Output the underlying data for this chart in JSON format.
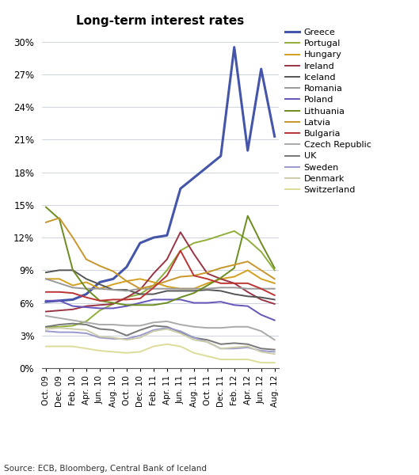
{
  "title": "Long-term interest rates",
  "source": "Source: ECB, Bloomberg, Central Bank of Iceland",
  "x_labels": [
    "Oct. 09",
    "Dec. 09",
    "Feb. 10",
    "Apr. 10",
    "Jun. 10",
    "Aug. 10",
    "Oct. 10",
    "Dec. 10",
    "Feb. 11",
    "Apr. 11",
    "Jun. 11",
    "Aug. 11",
    "Oct. 11",
    "Dec. 11",
    "Feb. 12",
    "Apr. 12",
    "Jun. 12",
    "Aug. 12"
  ],
  "ylim": [
    0,
    0.31
  ],
  "yticks": [
    0.0,
    0.03,
    0.06,
    0.09,
    0.12,
    0.15,
    0.18,
    0.21,
    0.24,
    0.27,
    0.3
  ],
  "series": {
    "Greece": {
      "color": "#4455aa",
      "lw": 2.2,
      "values": [
        0.061,
        0.062,
        0.063,
        0.068,
        0.079,
        0.082,
        0.093,
        0.115,
        0.12,
        0.122,
        0.165,
        0.175,
        0.185,
        0.195,
        0.295,
        0.2,
        0.275,
        0.213
      ]
    },
    "Portugal": {
      "color": "#8fae3a",
      "lw": 1.4,
      "values": [
        0.038,
        0.038,
        0.039,
        0.043,
        0.053,
        0.059,
        0.065,
        0.068,
        0.076,
        0.09,
        0.108,
        0.115,
        0.118,
        0.122,
        0.126,
        0.118,
        0.107,
        0.09
      ]
    },
    "Hungary": {
      "color": "#d4a020",
      "lw": 1.4,
      "values": [
        0.082,
        0.082,
        0.076,
        0.079,
        0.073,
        0.077,
        0.08,
        0.082,
        0.079,
        0.075,
        0.073,
        0.073,
        0.078,
        0.082,
        0.084,
        0.09,
        0.082,
        0.078
      ]
    },
    "Ireland": {
      "color": "#993344",
      "lw": 1.4,
      "values": [
        0.052,
        0.053,
        0.054,
        0.057,
        0.058,
        0.059,
        0.065,
        0.072,
        0.087,
        0.1,
        0.125,
        0.105,
        0.087,
        0.082,
        0.078,
        0.07,
        0.063,
        0.059
      ]
    },
    "Iceland": {
      "color": "#555555",
      "lw": 1.4,
      "values": [
        0.088,
        0.09,
        0.09,
        0.082,
        0.077,
        0.072,
        0.072,
        0.068,
        0.068,
        0.071,
        0.071,
        0.071,
        0.072,
        0.071,
        0.068,
        0.066,
        0.065,
        0.063
      ]
    },
    "Romania": {
      "color": "#999999",
      "lw": 1.4,
      "values": [
        0.082,
        0.078,
        0.074,
        0.073,
        0.073,
        0.072,
        0.071,
        0.073,
        0.073,
        0.073,
        0.073,
        0.073,
        0.073,
        0.074,
        0.074,
        0.073,
        0.073,
        0.073
      ]
    },
    "Poland": {
      "color": "#6655bb",
      "lw": 1.4,
      "values": [
        0.062,
        0.062,
        0.057,
        0.056,
        0.055,
        0.055,
        0.057,
        0.06,
        0.063,
        0.063,
        0.063,
        0.06,
        0.06,
        0.061,
        0.058,
        0.057,
        0.049,
        0.044
      ]
    },
    "Lithuania": {
      "color": "#6b8c1e",
      "lw": 1.4,
      "values": [
        0.148,
        0.137,
        0.09,
        0.073,
        0.062,
        0.06,
        0.058,
        0.058,
        0.058,
        0.06,
        0.065,
        0.069,
        0.076,
        0.083,
        0.092,
        0.14,
        0.115,
        0.092
      ]
    },
    "Latvia": {
      "color": "#c8962a",
      "lw": 1.4,
      "values": [
        0.134,
        0.138,
        0.12,
        0.1,
        0.094,
        0.089,
        0.08,
        0.073,
        0.076,
        0.08,
        0.084,
        0.085,
        0.088,
        0.092,
        0.095,
        0.098,
        0.09,
        0.082
      ]
    },
    "Bulgaria": {
      "color": "#bb3333",
      "lw": 1.4,
      "values": [
        0.07,
        0.07,
        0.069,
        0.065,
        0.062,
        0.063,
        0.063,
        0.064,
        0.074,
        0.085,
        0.108,
        0.085,
        0.082,
        0.078,
        0.078,
        0.078,
        0.073,
        0.067
      ]
    },
    "Czech Republic": {
      "color": "#aaaaaa",
      "lw": 1.4,
      "values": [
        0.048,
        0.046,
        0.044,
        0.042,
        0.04,
        0.04,
        0.039,
        0.039,
        0.042,
        0.043,
        0.04,
        0.038,
        0.037,
        0.037,
        0.038,
        0.038,
        0.034,
        0.026
      ]
    },
    "UK": {
      "color": "#777777",
      "lw": 1.4,
      "values": [
        0.038,
        0.04,
        0.041,
        0.04,
        0.036,
        0.035,
        0.03,
        0.035,
        0.039,
        0.038,
        0.033,
        0.028,
        0.026,
        0.022,
        0.023,
        0.022,
        0.018,
        0.017
      ]
    },
    "Sweden": {
      "color": "#9999cc",
      "lw": 1.4,
      "values": [
        0.034,
        0.033,
        0.033,
        0.032,
        0.028,
        0.027,
        0.027,
        0.03,
        0.035,
        0.037,
        0.034,
        0.028,
        0.024,
        0.018,
        0.018,
        0.019,
        0.016,
        0.015
      ]
    },
    "Denmark": {
      "color": "#ccccaa",
      "lw": 1.4,
      "values": [
        0.036,
        0.037,
        0.036,
        0.035,
        0.029,
        0.028,
        0.026,
        0.028,
        0.034,
        0.036,
        0.032,
        0.026,
        0.024,
        0.018,
        0.019,
        0.02,
        0.015,
        0.013
      ]
    },
    "Switzerland": {
      "color": "#dddd99",
      "lw": 1.4,
      "values": [
        0.02,
        0.02,
        0.02,
        0.018,
        0.016,
        0.015,
        0.014,
        0.015,
        0.02,
        0.022,
        0.02,
        0.014,
        0.011,
        0.008,
        0.008,
        0.008,
        0.005,
        0.005
      ]
    }
  },
  "legend_order": [
    "Greece",
    "Portugal",
    "Hungary",
    "Ireland",
    "Iceland",
    "Romania",
    "Poland",
    "Lithuania",
    "Latvia",
    "Bulgaria",
    "Czech Republic",
    "UK",
    "Sweden",
    "Denmark",
    "Switzerland"
  ]
}
